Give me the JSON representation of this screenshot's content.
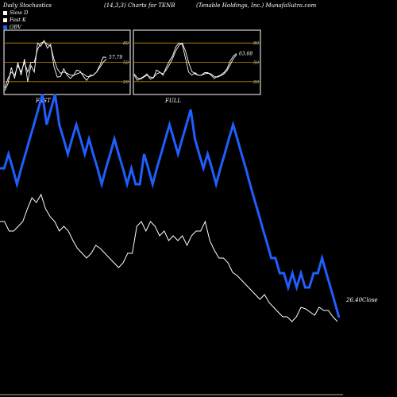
{
  "header": {
    "left": "Daily Stochastics",
    "middle": "(14,3,3) Charts for TENB",
    "right": "(Tenable  Holdings, Inc.) MunafaSutra.com"
  },
  "legend": {
    "items": [
      {
        "label": "Slow  D",
        "color": "#ffffff"
      },
      {
        "label": "Fast K",
        "color": "#ffffff"
      },
      {
        "label": "OBV",
        "color": "#1f5fff"
      }
    ]
  },
  "colors": {
    "obv": "#1f5fff",
    "price": "#ffffff",
    "grid": "#b8860b",
    "panel_border": "#ffffff",
    "background": "#000000"
  },
  "chart_data": [
    {
      "type": "line",
      "title": "FAST",
      "y_ticks": [
        20,
        50,
        80
      ],
      "ylim": [
        0,
        100
      ],
      "last_value_label": "57.79",
      "series": [
        {
          "values": [
            6,
            17,
            42,
            25,
            50,
            30,
            55,
            20,
            45,
            35,
            80,
            75,
            84,
            72,
            78,
            44,
            27,
            28,
            40,
            30,
            25,
            30,
            38,
            36,
            28,
            22,
            30,
            30,
            35,
            45,
            58,
            57.79
          ]
        },
        {
          "values": [
            10,
            25,
            35,
            30,
            45,
            35,
            50,
            35,
            50,
            50,
            70,
            80,
            82,
            78,
            75,
            55,
            40,
            33,
            35,
            33,
            30,
            30,
            32,
            34,
            32,
            28,
            28,
            30,
            35,
            42,
            50,
            55
          ]
        }
      ]
    },
    {
      "type": "line",
      "title": "FULL",
      "y_ticks": [
        20,
        50,
        80
      ],
      "ylim": [
        0,
        100
      ],
      "last_value_label": "63.68",
      "series": [
        {
          "values": [
            30,
            22,
            25,
            28,
            32,
            24,
            26,
            38,
            35,
            30,
            42,
            52,
            60,
            74,
            80,
            78,
            57,
            35,
            30,
            34,
            30,
            30,
            34,
            34,
            30,
            25,
            28,
            30,
            34,
            40,
            52,
            60,
            63.68
          ]
        },
        {
          "values": [
            32,
            26,
            24,
            27,
            30,
            27,
            26,
            32,
            34,
            32,
            38,
            46,
            56,
            68,
            76,
            80,
            68,
            50,
            36,
            32,
            30,
            30,
            32,
            33,
            32,
            28,
            27,
            29,
            32,
            37,
            46,
            56,
            62
          ]
        }
      ]
    },
    {
      "type": "line",
      "title": "",
      "last_value_label": "26.40Close",
      "series": [
        {
          "name": "OBV",
          "values": [
            188,
            188,
            206,
            188,
            168,
            188,
            206,
            225,
            243,
            262,
            281,
            243,
            262,
            281,
            243,
            225,
            206,
            225,
            243,
            225,
            206,
            225,
            206,
            188,
            168,
            188,
            206,
            225,
            206,
            188,
            168,
            188,
            168,
            168,
            206,
            188,
            168,
            188,
            206,
            225,
            243,
            225,
            206,
            225,
            243,
            262,
            225,
            206,
            188,
            206,
            188,
            168,
            188,
            206,
            225,
            243,
            225,
            206,
            188,
            168,
            149,
            131,
            112,
            94,
            75,
            75,
            56,
            56,
            38,
            56,
            38,
            56,
            38,
            38,
            56,
            56,
            75,
            56,
            38,
            19,
            0
          ]
        },
        {
          "name": "Close",
          "values": [
            63,
            63,
            57,
            57,
            60,
            63,
            71,
            78,
            75,
            80,
            71,
            66,
            63,
            57,
            60,
            57,
            51,
            46,
            43,
            40,
            43,
            48,
            46,
            43,
            40,
            37,
            34,
            37,
            43,
            43,
            60,
            63,
            57,
            63,
            60,
            54,
            57,
            51,
            54,
            51,
            54,
            48,
            54,
            57,
            57,
            63,
            51,
            45,
            40,
            40,
            37,
            31,
            29,
            26,
            23,
            20,
            17,
            14,
            17,
            12,
            9,
            6,
            3,
            3,
            0,
            3,
            9,
            8,
            6,
            4,
            9,
            7,
            7,
            3,
            0
          ]
        }
      ]
    }
  ]
}
